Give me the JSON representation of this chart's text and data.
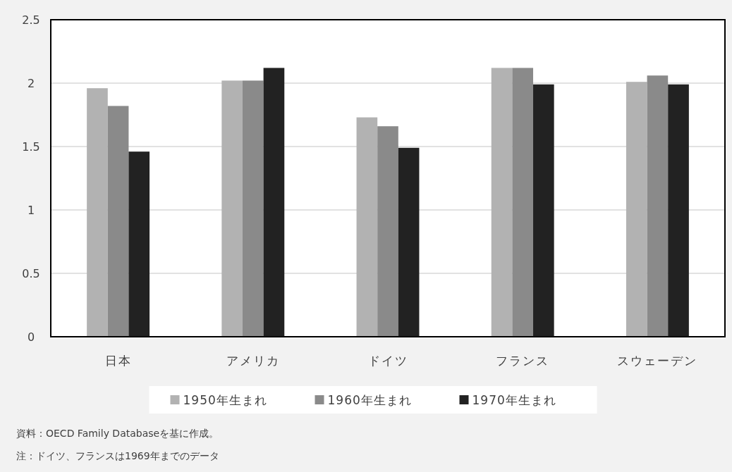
{
  "chart_data": {
    "type": "bar",
    "categories": [
      "日本",
      "アメリカ",
      "ドイツ",
      "フランス",
      "スウェーデン"
    ],
    "series": [
      {
        "name": "1950年生まれ",
        "color": "#b2b2b2",
        "values": [
          1.96,
          2.02,
          1.73,
          2.12,
          2.01
        ]
      },
      {
        "name": "1960年生まれ",
        "color": "#8a8a8a",
        "values": [
          1.82,
          2.02,
          1.66,
          2.12,
          2.06
        ]
      },
      {
        "name": "1970年生まれ",
        "color": "#222222",
        "values": [
          1.46,
          2.12,
          1.49,
          1.99,
          1.99
        ]
      }
    ],
    "ylim": [
      0,
      2.5
    ],
    "yticks": [
      0,
      0.5,
      1,
      1.5,
      2,
      2.5
    ],
    "grid": "y",
    "legend": "bottom",
    "annotations": [
      "資料：OECD Family Databaseを基に作成。",
      "注：ドイツ、フランスは1969年までのデータ"
    ]
  }
}
